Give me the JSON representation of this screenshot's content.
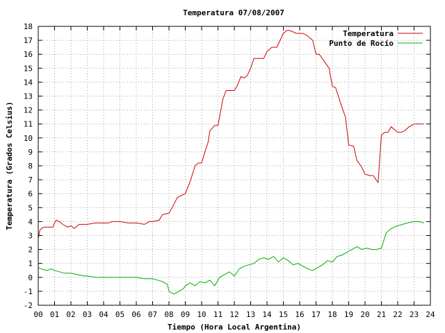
{
  "chart_data": {
    "type": "line",
    "title": "Temperatura 07/08/2007",
    "xlabel": "Tiempo (Hora Local Argentina)",
    "ylabel": "Temperatura (Grados Celsius)",
    "xlim": [
      0,
      24
    ],
    "ylim": [
      -2,
      18
    ],
    "x_ticks": [
      "00",
      "01",
      "02",
      "03",
      "04",
      "05",
      "06",
      "07",
      "08",
      "09",
      "10",
      "11",
      "12",
      "13",
      "14",
      "15",
      "16",
      "17",
      "18",
      "19",
      "20",
      "21",
      "22",
      "23",
      "24"
    ],
    "y_ticks": [
      -2,
      -1,
      0,
      1,
      2,
      3,
      4,
      5,
      6,
      7,
      8,
      9,
      10,
      11,
      12,
      13,
      14,
      15,
      16,
      17,
      18
    ],
    "grid": true,
    "legend": "top-right",
    "series": [
      {
        "name": "Temperatura",
        "color": "#cc0000",
        "x": [
          0.0,
          0.1,
          0.2,
          0.35,
          0.5,
          0.9,
          1.0,
          1.1,
          1.3,
          1.5,
          1.8,
          2.0,
          2.2,
          2.5,
          3.0,
          3.5,
          4.0,
          4.3,
          4.5,
          5.0,
          5.5,
          6.0,
          6.5,
          6.8,
          7.0,
          7.4,
          7.6,
          8.0,
          8.2,
          8.5,
          8.8,
          9.0,
          9.3,
          9.6,
          9.8,
          10.0,
          10.2,
          10.4,
          10.5,
          10.8,
          11.0,
          11.1,
          11.3,
          11.5,
          11.7,
          12.0,
          12.2,
          12.4,
          12.6,
          12.8,
          13.0,
          13.2,
          13.5,
          13.8,
          14.0,
          14.3,
          14.6,
          14.8,
          15.0,
          15.2,
          15.4,
          15.6,
          15.8,
          16.0,
          16.2,
          16.5,
          16.8,
          17.0,
          17.2,
          17.5,
          17.8,
          18.0,
          18.2,
          18.5,
          18.8,
          19.0,
          19.3,
          19.5,
          19.8,
          20.0,
          20.3,
          20.5,
          20.8,
          21.0,
          21.2,
          21.4,
          21.6,
          22.0,
          22.2,
          22.4,
          22.7,
          23.0,
          23.3,
          23.6
        ],
        "y": [
          2.8,
          3.4,
          3.5,
          3.6,
          3.6,
          3.6,
          3.9,
          4.1,
          4.0,
          3.8,
          3.6,
          3.7,
          3.5,
          3.8,
          3.8,
          3.9,
          3.9,
          3.9,
          4.0,
          4.0,
          3.9,
          3.9,
          3.8,
          4.0,
          4.0,
          4.1,
          4.5,
          4.6,
          5.0,
          5.7,
          5.9,
          6.0,
          6.9,
          8.0,
          8.2,
          8.2,
          9.0,
          9.7,
          10.5,
          10.9,
          10.9,
          11.5,
          12.8,
          13.4,
          13.4,
          13.4,
          13.8,
          14.4,
          14.3,
          14.5,
          15.0,
          15.7,
          15.7,
          15.7,
          16.2,
          16.5,
          16.5,
          17.0,
          17.5,
          17.7,
          17.7,
          17.6,
          17.5,
          17.5,
          17.5,
          17.3,
          17.0,
          16.0,
          16.0,
          15.5,
          15.0,
          13.7,
          13.6,
          12.5,
          11.5,
          9.5,
          9.4,
          8.4,
          7.9,
          7.4,
          7.3,
          7.3,
          6.8,
          10.2,
          10.4,
          10.4,
          10.8,
          10.4,
          10.4,
          10.5,
          10.8,
          11.0,
          11.0,
          11.0
        ]
      },
      {
        "name": "Punto de Rocío",
        "color": "#00aa00",
        "x": [
          0.0,
          0.2,
          0.5,
          0.8,
          1.0,
          1.3,
          1.6,
          2.0,
          2.4,
          2.8,
          3.0,
          3.5,
          4.0,
          4.5,
          5.0,
          5.5,
          6.0,
          6.5,
          7.0,
          7.3,
          7.6,
          7.9,
          8.0,
          8.3,
          8.6,
          8.9,
          9.0,
          9.3,
          9.6,
          9.9,
          10.2,
          10.5,
          10.8,
          11.1,
          11.4,
          11.7,
          12.0,
          12.3,
          12.6,
          12.9,
          13.2,
          13.5,
          13.8,
          14.1,
          14.4,
          14.7,
          15.0,
          15.3,
          15.6,
          15.9,
          16.2,
          16.5,
          16.8,
          17.1,
          17.4,
          17.7,
          18.0,
          18.3,
          18.6,
          18.9,
          19.2,
          19.5,
          19.8,
          20.1,
          20.4,
          20.7,
          21.0,
          21.3,
          21.6,
          22.0,
          22.3,
          22.6,
          23.0,
          23.3,
          23.6
        ],
        "y": [
          0.7,
          0.6,
          0.5,
          0.6,
          0.5,
          0.4,
          0.3,
          0.3,
          0.2,
          0.1,
          0.1,
          0.0,
          0.0,
          0.0,
          0.0,
          0.0,
          0.0,
          -0.1,
          -0.1,
          -0.2,
          -0.3,
          -0.5,
          -1.0,
          -1.2,
          -1.0,
          -0.8,
          -0.6,
          -0.4,
          -0.6,
          -0.3,
          -0.4,
          -0.2,
          -0.6,
          0.0,
          0.2,
          0.4,
          0.1,
          0.6,
          0.8,
          0.9,
          1.0,
          1.3,
          1.4,
          1.3,
          1.5,
          1.1,
          1.4,
          1.2,
          0.9,
          1.0,
          0.8,
          0.6,
          0.5,
          0.7,
          0.9,
          1.2,
          1.1,
          1.5,
          1.6,
          1.8,
          2.0,
          2.2,
          2.0,
          2.1,
          2.0,
          2.0,
          2.1,
          3.2,
          3.5,
          3.7,
          3.8,
          3.9,
          4.0,
          4.0,
          3.9
        ]
      }
    ]
  }
}
